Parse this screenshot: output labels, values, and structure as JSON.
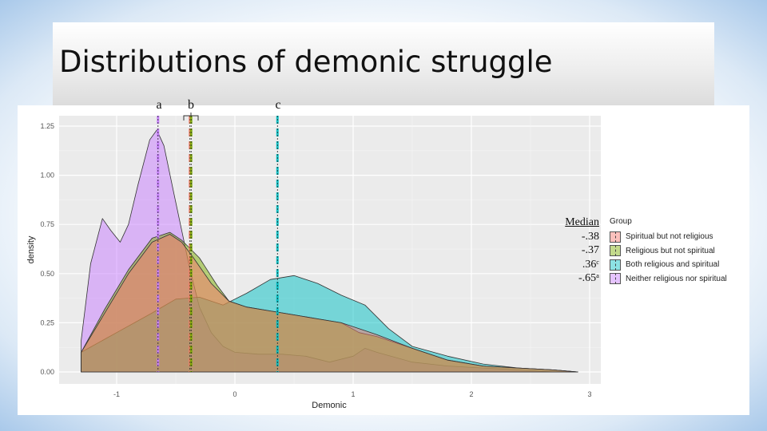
{
  "slide": {
    "title": "Distributions of demonic struggle"
  },
  "annotations": {
    "letters": [
      "a",
      "b",
      "c"
    ]
  },
  "median_box": {
    "header": "Median",
    "values": [
      "-.38",
      "-.37",
      ".36ᶜ",
      "-.65ᵃ"
    ]
  },
  "legend": {
    "title": "Group",
    "items": [
      {
        "label": "Spiritual but not religious",
        "color": "#f8766d"
      },
      {
        "label": "Religious but not spiritual",
        "color": "#7cae00"
      },
      {
        "label": "Both religious and spiritual",
        "color": "#00bfc4"
      },
      {
        "label": "Neither religious nor spiritual",
        "color": "#c77cff"
      }
    ]
  },
  "chart_data": {
    "type": "area",
    "xlabel": "Demonic",
    "ylabel": "density",
    "xlim": [
      -1.3,
      3.0
    ],
    "ylim": [
      0,
      1.27
    ],
    "x_ticks": [
      "-1",
      "0",
      "1",
      "2",
      "3"
    ],
    "y_ticks": [
      "0.00",
      "0.25",
      "0.50",
      "0.75",
      "1.00",
      "1.25"
    ],
    "grid": true,
    "legend_position": "right",
    "series": [
      {
        "name": "Spiritual but not religious",
        "color": "#f8766d",
        "median": -0.38,
        "x": [
          -1.3,
          -1.1,
          -0.9,
          -0.7,
          -0.55,
          -0.45,
          -0.35,
          -0.2,
          -0.05,
          0.1,
          0.3,
          0.5,
          0.7,
          0.9,
          1.05,
          1.2,
          1.5,
          1.8,
          2.1,
          2.4,
          2.7,
          2.9
        ],
        "y": [
          0.1,
          0.3,
          0.5,
          0.66,
          0.7,
          0.66,
          0.58,
          0.45,
          0.36,
          0.33,
          0.31,
          0.29,
          0.27,
          0.25,
          0.22,
          0.19,
          0.12,
          0.06,
          0.03,
          0.02,
          0.01,
          0.0
        ]
      },
      {
        "name": "Religious but not spiritual",
        "color": "#7cae00",
        "median": -0.37,
        "x": [
          -1.3,
          -1.1,
          -0.9,
          -0.7,
          -0.55,
          -0.45,
          -0.3,
          -0.15,
          -0.05,
          0.1,
          0.3,
          0.5,
          0.7,
          0.9,
          1.05,
          1.2,
          1.5,
          1.8,
          2.1,
          2.4,
          2.7,
          2.9
        ],
        "y": [
          0.1,
          0.32,
          0.52,
          0.68,
          0.71,
          0.67,
          0.58,
          0.44,
          0.36,
          0.33,
          0.31,
          0.29,
          0.27,
          0.25,
          0.2,
          0.18,
          0.12,
          0.06,
          0.03,
          0.02,
          0.01,
          0.0
        ]
      },
      {
        "name": "Both religious and spiritual",
        "color": "#00bfc4",
        "median": 0.36,
        "x": [
          -1.3,
          -1.0,
          -0.7,
          -0.5,
          -0.3,
          -0.1,
          0.1,
          0.3,
          0.5,
          0.7,
          0.9,
          1.1,
          1.3,
          1.5,
          1.8,
          2.1,
          2.4,
          2.7,
          2.9
        ],
        "y": [
          0.1,
          0.2,
          0.3,
          0.37,
          0.38,
          0.34,
          0.4,
          0.47,
          0.49,
          0.45,
          0.39,
          0.34,
          0.22,
          0.13,
          0.08,
          0.04,
          0.02,
          0.01,
          0.0
        ]
      },
      {
        "name": "Neither religious nor spiritual",
        "color": "#c77cff",
        "median": -0.65,
        "x": [
          -1.3,
          -1.22,
          -1.12,
          -1.05,
          -0.97,
          -0.9,
          -0.82,
          -0.72,
          -0.66,
          -0.6,
          -0.52,
          -0.45,
          -0.38,
          -0.3,
          -0.2,
          -0.1,
          0.0,
          0.2,
          0.4,
          0.6,
          0.8,
          1.0,
          1.1,
          1.2,
          1.5,
          1.8,
          2.1,
          2.4,
          2.7,
          2.9
        ],
        "y": [
          0.16,
          0.55,
          0.78,
          0.72,
          0.66,
          0.75,
          0.95,
          1.18,
          1.23,
          1.15,
          0.92,
          0.72,
          0.52,
          0.33,
          0.2,
          0.13,
          0.1,
          0.09,
          0.09,
          0.08,
          0.05,
          0.08,
          0.12,
          0.1,
          0.05,
          0.03,
          0.02,
          0.01,
          0.0,
          0.0
        ]
      }
    ]
  }
}
